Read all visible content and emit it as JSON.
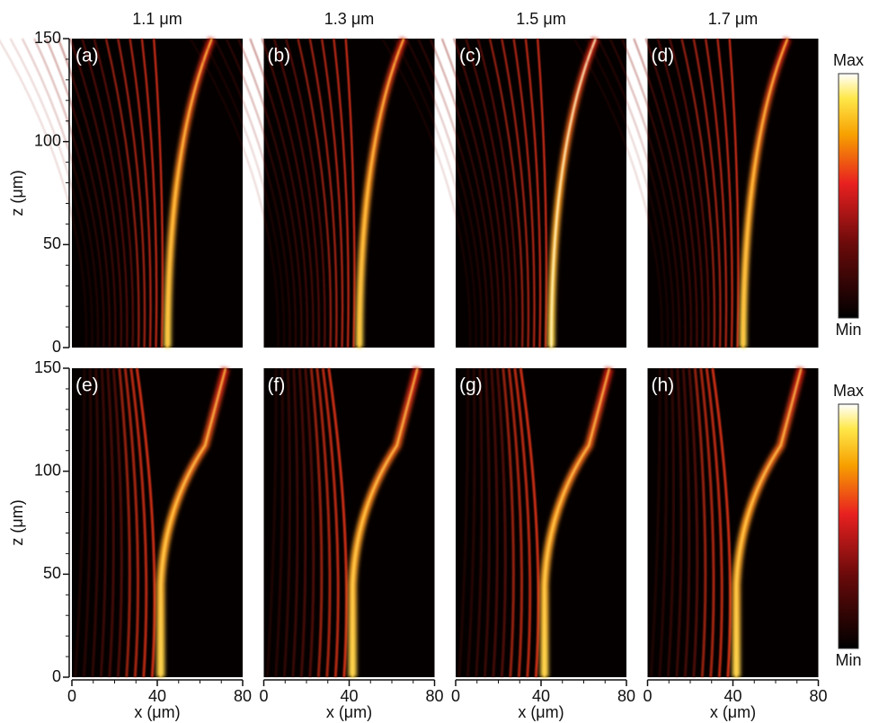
{
  "chart_data": [
    {
      "type": "heatmap",
      "title": "1.1 μm",
      "panel_label": "(a)",
      "ylabel": "z (μm)",
      "ylim": [
        0,
        150
      ],
      "yticks": [
        0,
        50,
        100,
        150
      ]
    },
    {
      "type": "heatmap",
      "title": "1.3 μm",
      "panel_label": "(b)"
    },
    {
      "type": "heatmap",
      "title": "1.5 μm",
      "panel_label": "(c)"
    },
    {
      "type": "heatmap",
      "title": "1.7 μm",
      "panel_label": "(d)",
      "colorbar": {
        "max": "Max",
        "min": "Min"
      }
    },
    {
      "type": "heatmap",
      "panel_label": "(e)",
      "ylabel": "z (μm)",
      "ylim": [
        0,
        150
      ],
      "yticks": [
        0,
        50,
        100,
        150
      ],
      "xlabel": "x (μm)",
      "xlim": [
        0,
        80
      ],
      "xticks": [
        0,
        40,
        80
      ]
    },
    {
      "type": "heatmap",
      "panel_label": "(f)",
      "xlabel": "x (μm)",
      "xlim": [
        0,
        80
      ],
      "xticks": [
        0,
        40,
        80
      ]
    },
    {
      "type": "heatmap",
      "panel_label": "(g)",
      "xlabel": "x (μm)",
      "xlim": [
        0,
        80
      ],
      "xticks": [
        0,
        40,
        80
      ]
    },
    {
      "type": "heatmap",
      "panel_label": "(h)",
      "xlabel": "x (μm)",
      "xlim": [
        0,
        80
      ],
      "xticks": [
        0,
        40,
        80
      ],
      "colorbar": {
        "max": "Max",
        "min": "Min"
      }
    }
  ]
}
